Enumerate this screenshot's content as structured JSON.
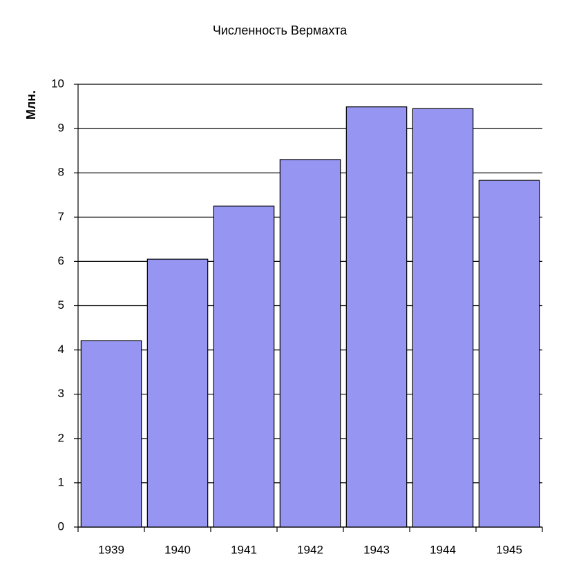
{
  "chart_data": {
    "type": "bar",
    "title": "Численность Вермахта",
    "y_label": "Млн.",
    "categories": [
      "1939",
      "1940",
      "1941",
      "1942",
      "1943",
      "1944",
      "1945"
    ],
    "values": [
      4.21,
      6.05,
      7.25,
      8.3,
      9.49,
      9.45,
      7.83
    ],
    "color": "#9696f2",
    "ylim": [
      0,
      10
    ],
    "yticks": [
      0,
      1,
      2,
      3,
      4,
      5,
      6,
      7,
      8,
      9,
      10
    ],
    "grid": true
  }
}
